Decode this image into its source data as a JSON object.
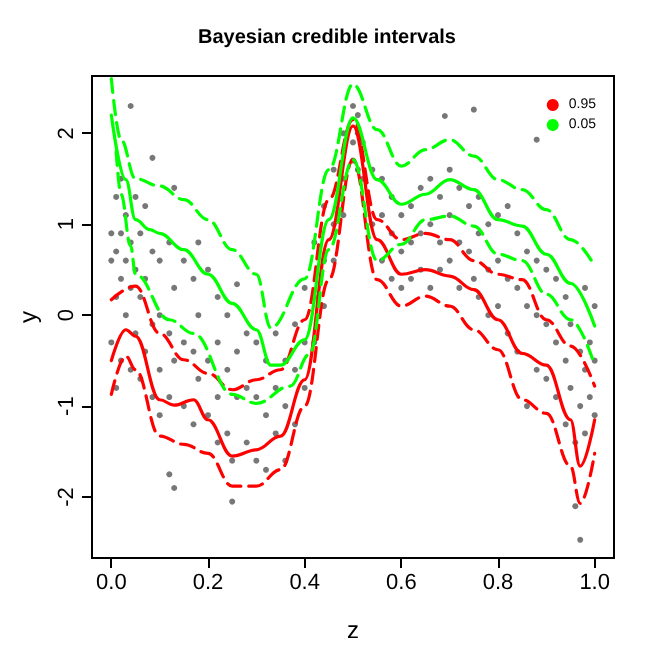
{
  "chart_data": {
    "type": "line",
    "title": "Bayesian credible intervals",
    "xlabel": "z",
    "ylabel": "y",
    "xlim": [
      -0.04,
      1.04
    ],
    "ylim": [
      -2.67,
      2.63
    ],
    "xticks": [
      {
        "value": 0,
        "label": "0.0"
      },
      0.2,
      0.4,
      0.6,
      0.8,
      {
        "value": 1,
        "label": "1.0"
      }
    ],
    "yticks": [
      -2,
      -1,
      0,
      1,
      2
    ],
    "grid": false,
    "legend": "top right",
    "marker": "none",
    "series": [
      {
        "type": "scatter",
        "marker": "circle",
        "color": "#555555",
        "x": [
          0,
          0,
          0,
          0.01,
          0.01,
          0.01,
          0.01,
          0.02,
          0.02,
          0.02,
          0.02,
          0.03,
          0.03,
          0.03,
          0.04,
          0.04,
          0.04,
          0.04,
          0.05,
          0.05,
          0.05,
          0.06,
          0.06,
          0.06,
          0.07,
          0.07,
          0.07,
          0.085,
          0.085,
          0.085,
          0.085,
          0.1,
          0.1,
          0.1,
          0.1,
          0.12,
          0.12,
          0.12,
          0.12,
          0.13,
          0.13,
          0.13,
          0.13,
          0.15,
          0.15,
          0.15,
          0.17,
          0.17,
          0.17,
          0.18,
          0.18,
          0.18,
          0.2,
          0.2,
          0.2,
          0.22,
          0.22,
          0.22,
          0.22,
          0.24,
          0.24,
          0.24,
          0.25,
          0.25,
          0.26,
          0.26,
          0.26,
          0.28,
          0.28,
          0.28,
          0.3,
          0.3,
          0.3,
          0.32,
          0.32,
          0.32,
          0.34,
          0.34,
          0.34,
          0.36,
          0.36,
          0.36,
          0.38,
          0.38,
          0.38,
          0.4,
          0.4,
          0.4,
          0.42,
          0.42,
          0.42,
          0.44,
          0.44,
          0.44,
          0.46,
          0.46,
          0.46,
          0.48,
          0.48,
          0.48,
          0.5,
          0.5,
          0.5,
          0.51,
          0.51,
          0.51,
          0.52,
          0.52,
          0.54,
          0.54,
          0.56,
          0.56,
          0.56,
          0.58,
          0.58,
          0.58,
          0.6,
          0.6,
          0.6,
          0.62,
          0.62,
          0.62,
          0.64,
          0.64,
          0.64,
          0.66,
          0.66,
          0.66,
          0.68,
          0.68,
          0.68,
          0.69,
          0.7,
          0.7,
          0.7,
          0.72,
          0.72,
          0.72,
          0.74,
          0.74,
          0.75,
          0.75,
          0.76,
          0.76,
          0.76,
          0.78,
          0.78,
          0.78,
          0.8,
          0.8,
          0.8,
          0.82,
          0.82,
          0.82,
          0.84,
          0.84,
          0.84,
          0.86,
          0.86,
          0.86,
          0.88,
          0.88,
          0.88,
          0.88,
          0.9,
          0.9,
          0.9,
          0.92,
          0.92,
          0.92,
          0.94,
          0.94,
          0.94,
          0.95,
          0.95,
          0.96,
          0.96,
          0.97,
          0.97,
          0.97,
          0.98,
          0.98,
          0.98,
          0.99,
          0.99,
          1,
          1,
          1
        ],
        "values": [
          0.9,
          0.6,
          -0.3,
          1.3,
          0.7,
          0.2,
          -0.8,
          1.5,
          0.9,
          0.4,
          -0.5,
          1.1,
          0.6,
          0.0,
          2.3,
          0.8,
          0.3,
          -0.6,
          1.3,
          0.5,
          -0.2,
          0.9,
          0.2,
          -0.7,
          1.2,
          0.4,
          -0.4,
          1.73,
          0.7,
          -0.1,
          -0.9,
          0.6,
          0.0,
          -0.6,
          -1.1,
          0.8,
          -0.2,
          -0.9,
          -1.75,
          1.4,
          0.3,
          -0.5,
          -1.9,
          0.6,
          -0.3,
          -1.0,
          0.4,
          -0.4,
          -1.2,
          0.8,
          0.0,
          -0.7,
          0.5,
          -0.5,
          -1.1,
          0.2,
          -0.3,
          -0.9,
          -1.4,
          0.0,
          -0.6,
          -1.3,
          -2.05,
          -1.6,
          0.34,
          -0.4,
          -0.9,
          -0.2,
          -0.8,
          -1.4,
          -0.3,
          -0.9,
          -1.6,
          -0.5,
          -1.1,
          -1.7,
          -0.2,
          -0.8,
          -1.3,
          -0.5,
          -1.0,
          -1.6,
          -0.1,
          -0.6,
          -1.2,
          0.3,
          -0.3,
          -0.8,
          0.8,
          0.2,
          -0.3,
          1.2,
          0.6,
          0.1,
          1.6,
          1.0,
          0.6,
          2.0,
          1.5,
          1.1,
          2.3,
          1.9,
          1.7,
          2.2,
          2.0,
          1.6,
          1.9,
          1.5,
          1.6,
          1.0,
          1.5,
          1.1,
          0.6,
          1.3,
          0.9,
          0.4,
          1.1,
          0.7,
          0.3,
          1.2,
          0.8,
          0.4,
          1.4,
          0.9,
          0.5,
          1.5,
          1.0,
          0.3,
          1.3,
          0.8,
          0.5,
          2.19,
          1.6,
          1.1,
          0.6,
          1.4,
          0.8,
          0.3,
          1.2,
          0.7,
          2.26,
          0.4,
          1.3,
          0.9,
          0.2,
          1.0,
          0.5,
          0.0,
          1.1,
          0.6,
          0.1,
          1.2,
          0.4,
          -0.2,
          0.9,
          0.3,
          -0.4,
          0.7,
          0.1,
          -1.0,
          1.93,
          0.6,
          0.0,
          -0.6,
          0.5,
          -0.1,
          -0.7,
          0.4,
          -0.3,
          -0.9,
          0.2,
          -0.5,
          -1.2,
          -0.1,
          -0.8,
          -2.1,
          -1.4,
          -2.47,
          -1.0,
          -0.4,
          0.3,
          -0.6,
          -1.3,
          -0.3,
          -0.9,
          0.1,
          -0.5,
          -1.1
        ]
      },
      {
        "name": "0.95",
        "color": "#ff0000",
        "line_style": "solid",
        "x": [
          0,
          0.03,
          0.05,
          0.1,
          0.13,
          0.17,
          0.2,
          0.25,
          0.3,
          0.35,
          0.4,
          0.45,
          0.5,
          0.55,
          0.6,
          0.65,
          0.7,
          0.75,
          0.8,
          0.85,
          0.9,
          0.95,
          0.97,
          1
        ],
        "values": [
          -0.5,
          -0.16,
          -0.23,
          -0.93,
          -0.99,
          -0.93,
          -1.15,
          -1.55,
          -1.48,
          -1.33,
          -0.71,
          0.83,
          2.08,
          0.83,
          0.45,
          0.5,
          0.43,
          0.28,
          -0.05,
          -0.42,
          -0.55,
          -1.15,
          -1.66,
          -1.15
        ]
      },
      {
        "color": "#ff0000",
        "line_style": "dashed",
        "x": [
          0,
          0.05,
          0.1,
          0.15,
          0.2,
          0.25,
          0.3,
          0.35,
          0.4,
          0.45,
          0.5,
          0.55,
          0.6,
          0.65,
          0.7,
          0.75,
          0.8,
          0.85,
          0.9,
          0.95,
          1
        ],
        "values": [
          0.17,
          0.32,
          -0.2,
          -0.49,
          -0.64,
          -0.82,
          -0.71,
          -0.6,
          -0.05,
          1.27,
          2.15,
          1.05,
          0.83,
          0.9,
          0.83,
          0.6,
          0.45,
          0.39,
          -0.05,
          -0.34,
          -0.78
        ]
      },
      {
        "color": "#ff0000",
        "line_style": "dashed",
        "x": [
          0,
          0.03,
          0.05,
          0.1,
          0.15,
          0.2,
          0.25,
          0.3,
          0.35,
          0.4,
          0.45,
          0.5,
          0.55,
          0.6,
          0.65,
          0.7,
          0.75,
          0.8,
          0.85,
          0.9,
          0.95,
          0.97,
          1
        ],
        "values": [
          -0.87,
          -0.45,
          -0.6,
          -1.33,
          -1.42,
          -1.52,
          -1.88,
          -1.88,
          -1.7,
          -1.0,
          0.39,
          1.71,
          0.39,
          0.1,
          0.21,
          0.1,
          -0.16,
          -0.38,
          -0.93,
          -1.08,
          -1.66,
          -2.07,
          -1.52
        ]
      },
      {
        "name": "0.05",
        "color": "#00ff00",
        "line_style": "solid",
        "x": [
          0,
          0.03,
          0.05,
          0.08,
          0.1,
          0.15,
          0.2,
          0.25,
          0.3,
          0.33,
          0.35,
          0.4,
          0.45,
          0.5,
          0.55,
          0.6,
          0.65,
          0.7,
          0.75,
          0.8,
          0.85,
          0.9,
          0.95,
          1
        ],
        "values": [
          2.2,
          1.49,
          1.05,
          0.94,
          0.9,
          0.72,
          0.45,
          0.13,
          -0.16,
          -0.55,
          -0.55,
          -0.27,
          1.05,
          2.17,
          1.49,
          1.22,
          1.33,
          1.49,
          1.38,
          1.05,
          0.98,
          0.67,
          0.35,
          -0.12
        ]
      },
      {
        "color": "#00ff00",
        "line_style": "dashed",
        "x": [
          0,
          0.02,
          0.05,
          0.1,
          0.15,
          0.2,
          0.25,
          0.3,
          0.33,
          0.4,
          0.45,
          0.5,
          0.55,
          0.6,
          0.65,
          0.7,
          0.75,
          0.8,
          0.85,
          0.9,
          0.95,
          1
        ],
        "values": [
          2.6,
          1.93,
          1.5,
          1.42,
          1.27,
          1.05,
          0.72,
          0.45,
          -0.14,
          0.4,
          1.6,
          2.54,
          2.04,
          1.64,
          1.82,
          1.93,
          1.75,
          1.49,
          1.38,
          1.16,
          0.83,
          0.54
        ]
      },
      {
        "color": "#00ff00",
        "line_style": "dashed",
        "x": [
          0.01,
          0.02,
          0.04,
          0.05,
          0.12,
          0.17,
          0.25,
          0.3,
          0.37,
          0.41,
          0.45,
          0.5,
          0.55,
          0.6,
          0.65,
          0.7,
          0.75,
          0.8,
          0.85,
          0.9,
          0.95,
          1
        ],
        "values": [
          1.8,
          1.33,
          0.76,
          0.45,
          -0.05,
          -0.2,
          -0.87,
          -0.97,
          -0.78,
          -0.43,
          0.72,
          1.71,
          0.6,
          0.78,
          1.05,
          1.09,
          0.98,
          0.67,
          0.6,
          0.23,
          -0.05,
          -0.55
        ]
      }
    ]
  }
}
